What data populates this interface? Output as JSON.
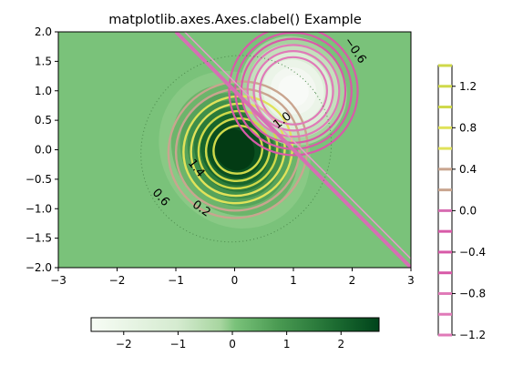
{
  "chart_data": {
    "type": "contour",
    "title": "matplotlib.axes.Axes.clabel() Example",
    "xlim": [
      -3,
      3
    ],
    "ylim": [
      -2,
      2
    ],
    "x_ticks": [
      "−3",
      "−2",
      "−1",
      "0",
      "1",
      "2",
      "3"
    ],
    "y_ticks": [
      "2.0",
      "1.5",
      "1.0",
      "0.5",
      "0.0",
      "−0.5",
      "−1.0",
      "−1.5",
      "−2.0"
    ],
    "x_tick_values": [
      -3,
      -2,
      -1,
      0,
      1,
      2,
      3
    ],
    "y_tick_values": [
      2.0,
      1.5,
      1.0,
      0.5,
      0.0,
      -0.5,
      -1.0,
      -1.5,
      -2.0
    ],
    "fill": {
      "colormap": "Greens",
      "negative_peak": {
        "center": [
          0,
          0
        ],
        "value": -2.7
      },
      "positive_peak": {
        "center": [
          1,
          1
        ],
        "value": 1.35
      },
      "colorbar": {
        "orientation": "horizontal",
        "range": [
          -2.6,
          2.7
        ],
        "ticks": [
          "−2",
          "−1",
          "0",
          "1",
          "2"
        ],
        "tick_values": [
          -2,
          -1,
          0,
          1,
          2
        ]
      }
    },
    "contour_lines": {
      "colormap": "PiYG",
      "levels": [
        -1.2,
        -1.0,
        -0.8,
        -0.6,
        -0.4,
        -0.2,
        0.0,
        0.2,
        0.4,
        0.6,
        0.8,
        1.0,
        1.2,
        1.4
      ],
      "inline_labels": [
        "1.4",
        "0.6",
        "0.2",
        "1.0",
        "−0.6"
      ],
      "colorbar": {
        "orientation": "vertical",
        "range": [
          -1.2,
          1.4
        ],
        "ticks": [
          "1.2",
          "0.8",
          "0.4",
          "0.0",
          "−0.4",
          "−0.8",
          "−1.2"
        ],
        "tick_values": [
          1.2,
          0.8,
          0.4,
          0.0,
          -0.4,
          -0.8,
          -1.2
        ]
      }
    },
    "grid": false
  }
}
